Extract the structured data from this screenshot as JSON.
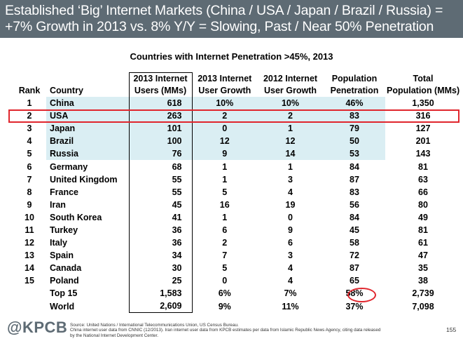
{
  "header": {
    "line1": "Established ‘Big’ Internet Markets (China / USA / Japan / Brazil / Russia) =",
    "line2": "+7% Growth in 2013 vs. 8% Y/Y = Slowing, Past / Near 50% Penetration"
  },
  "table_title": "Countries with Internet Penetration >45%, 2013",
  "columns": {
    "rank": "Rank",
    "country": "Country",
    "users_l1": "2013 Internet",
    "users_l2": "Users (MMs)",
    "growth13_l1": "2013 Internet",
    "growth13_l2": "User Growth",
    "growth12_l1": "2012 Internet",
    "growth12_l2": "User Growth",
    "pen_l1": "Population",
    "pen_l2": "Penetration",
    "pop_l1": "Total",
    "pop_l2": "Population (MMs)"
  },
  "rows": [
    {
      "rank": "1",
      "country": "China",
      "users": "618",
      "g13": "10%",
      "g12": "10%",
      "pen": "46%",
      "pop": "1,350"
    },
    {
      "rank": "2",
      "country": "USA",
      "users": "263",
      "g13": "2",
      "g12": "2",
      "pen": "83",
      "pop": "316"
    },
    {
      "rank": "3",
      "country": "Japan",
      "users": "101",
      "g13": "0",
      "g12": "1",
      "pen": "79",
      "pop": "127"
    },
    {
      "rank": "4",
      "country": "Brazil",
      "users": "100",
      "g13": "12",
      "g12": "12",
      "pen": "50",
      "pop": "201"
    },
    {
      "rank": "5",
      "country": "Russia",
      "users": "76",
      "g13": "9",
      "g12": "14",
      "pen": "53",
      "pop": "143"
    },
    {
      "rank": "6",
      "country": "Germany",
      "users": "68",
      "g13": "1",
      "g12": "1",
      "pen": "84",
      "pop": "81"
    },
    {
      "rank": "7",
      "country": "United Kingdom",
      "users": "55",
      "g13": "1",
      "g12": "3",
      "pen": "87",
      "pop": "63"
    },
    {
      "rank": "8",
      "country": "France",
      "users": "55",
      "g13": "5",
      "g12": "4",
      "pen": "83",
      "pop": "66"
    },
    {
      "rank": "9",
      "country": "Iran",
      "users": "45",
      "g13": "16",
      "g12": "19",
      "pen": "56",
      "pop": "80"
    },
    {
      "rank": "10",
      "country": "South Korea",
      "users": "41",
      "g13": "1",
      "g12": "0",
      "pen": "84",
      "pop": "49"
    },
    {
      "rank": "11",
      "country": "Turkey",
      "users": "36",
      "g13": "6",
      "g12": "9",
      "pen": "45",
      "pop": "81"
    },
    {
      "rank": "12",
      "country": "Italy",
      "users": "36",
      "g13": "2",
      "g12": "6",
      "pen": "58",
      "pop": "61"
    },
    {
      "rank": "13",
      "country": "Spain",
      "users": "34",
      "g13": "7",
      "g12": "3",
      "pen": "72",
      "pop": "47"
    },
    {
      "rank": "14",
      "country": "Canada",
      "users": "30",
      "g13": "5",
      "g12": "4",
      "pen": "87",
      "pop": "35"
    },
    {
      "rank": "15",
      "country": "Poland",
      "users": "25",
      "g13": "0",
      "g12": "4",
      "pen": "65",
      "pop": "38"
    }
  ],
  "totals": [
    {
      "label": "Top 15",
      "users": "1,583",
      "g13": "6%",
      "g12": "7%",
      "pen": "58%",
      "pop": "2,739"
    },
    {
      "label": "World",
      "users": "2,609",
      "g13": "9%",
      "g12": "11%",
      "pen": "37%",
      "pop": "7,098"
    }
  ],
  "logo": "@KPCB",
  "footnote": {
    "line1": "Source: United Nations / International Telecommunications Union, US Census Bureau.",
    "line2": "China internet user data from CNNIC (12/2013). Iran internet user data from KPCB estimates per data from Islamic Republic News Agency, citing data released",
    "line3": "by the National Internet Development Center."
  },
  "page_number": "155",
  "colors": {
    "header_bg": "#5e6b74",
    "highlight_fill": "#daeef3",
    "callout_red": "#e0262d"
  }
}
